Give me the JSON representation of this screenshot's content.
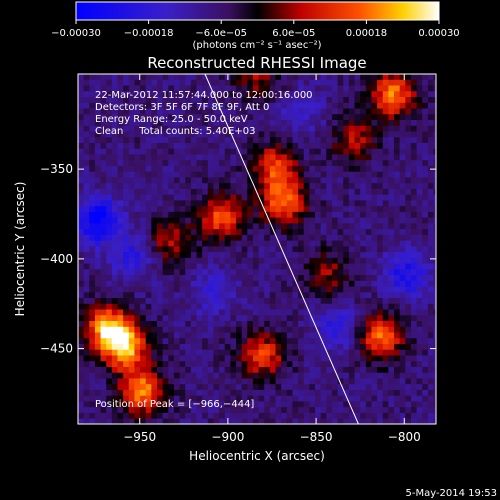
{
  "chart_data": {
    "type": "heatmap",
    "title": "Reconstructed RHESSI Image",
    "xlabel": "Heliocentric X (arcsec)",
    "ylabel": "Heliocentric Y (arcsec)",
    "xlim": [
      -985,
      -782
    ],
    "ylim": [
      -492,
      -297
    ],
    "x_ticks": [
      -950,
      -900,
      -850,
      -800
    ],
    "y_ticks": [
      -350,
      -400,
      -450
    ],
    "x_tick_labels": [
      "−950",
      "−900",
      "−850",
      "−800"
    ],
    "y_tick_labels": [
      "−350",
      "−400",
      "−450"
    ],
    "grid": false,
    "colorbar": {
      "range": [
        -0.0003,
        0.0003
      ],
      "ticks": [
        -0.0003,
        -0.00018,
        -6e-05,
        6e-05,
        0.00018,
        0.0003
      ],
      "tick_labels": [
        "−0.00030",
        "−0.00018",
        "−6.0e−05",
        "6.0e−05",
        "0.00018",
        "0.00030"
      ],
      "units": "(photons cm⁻² s⁻¹ asec⁻²)",
      "colormap": "blue-purple-black-red-yellow-white"
    },
    "info_lines": [
      "22-Mar-2012 11:57:44.000 to 12:00:16.000",
      "Detectors: 3F 5F 6F 7F 8F 9F, Att 0",
      "Energy Range: 25.0 - 50.0 keV",
      "Clean     Total counts: 5.40E+03"
    ],
    "peak_label": "Position of Peak = [−966,−444]",
    "peak": [
      -966,
      -444
    ],
    "limb_line": [
      [
        -913,
        -297
      ],
      [
        -826,
        -492
      ]
    ],
    "bright_sources": [
      {
        "x": -960,
        "y": -450,
        "value": 0.0003
      },
      {
        "x": -950,
        "y": -475,
        "value": 0.00026
      },
      {
        "x": -970,
        "y": -440,
        "value": 0.00028
      },
      {
        "x": -905,
        "y": -378,
        "value": 0.00022
      },
      {
        "x": -870,
        "y": -370,
        "value": 0.00024
      },
      {
        "x": -875,
        "y": -350,
        "value": 0.0002
      },
      {
        "x": -808,
        "y": -310,
        "value": 0.00025
      },
      {
        "x": -815,
        "y": -445,
        "value": 0.00024
      },
      {
        "x": -882,
        "y": -455,
        "value": 0.0002
      },
      {
        "x": -845,
        "y": -410,
        "value": 0.00012
      },
      {
        "x": -935,
        "y": -392,
        "value": 0.00014
      },
      {
        "x": -830,
        "y": -335,
        "value": 0.00014
      },
      {
        "x": -885,
        "y": -300,
        "value": 0.00012
      }
    ],
    "dark_sources": [
      {
        "x": -975,
        "y": -380,
        "value": -0.00024
      },
      {
        "x": -955,
        "y": -400,
        "value": -0.00012
      },
      {
        "x": -910,
        "y": -420,
        "value": -0.0001
      },
      {
        "x": -840,
        "y": -440,
        "value": -0.00012
      },
      {
        "x": -800,
        "y": -410,
        "value": -0.00016
      },
      {
        "x": -860,
        "y": -320,
        "value": -8e-05
      }
    ]
  },
  "footer": {
    "date": "5-May-2014 19:53"
  }
}
